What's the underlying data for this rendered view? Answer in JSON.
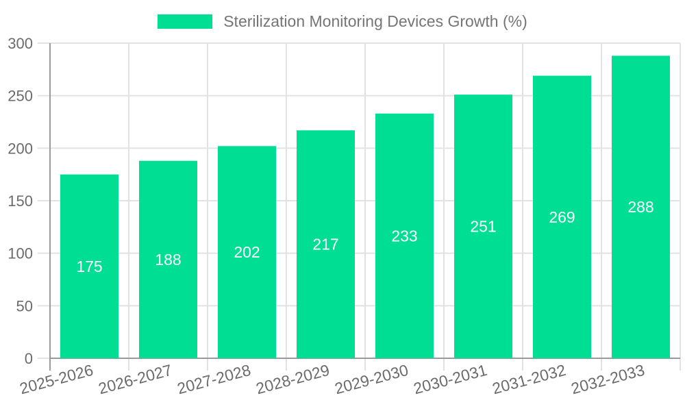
{
  "chart_data": {
    "type": "bar",
    "title": "Sterilization Monitoring Devices Growth (%)",
    "categories": [
      "2025-2026",
      "2026-2027",
      "2027-2028",
      "2028-2029",
      "2029-2030",
      "2030-2031",
      "2031-2032",
      "2032-2033"
    ],
    "values": [
      175,
      188,
      202,
      217,
      233,
      251,
      269,
      288
    ],
    "xlabel": "",
    "ylabel": "",
    "ylim": [
      0,
      300
    ],
    "yticks": [
      0,
      50,
      100,
      150,
      200,
      250,
      300
    ],
    "grid": true,
    "legend_position": "top-center",
    "x_label_rotation_deg": -15,
    "colors": {
      "bar": "#00DE94",
      "axis_line": "#9a9a9a",
      "grid_line": "#e2e2e2",
      "tick_label": "#6b6b6b",
      "legend_text": "#757575",
      "value_label": "#ffffff",
      "background": "#ffffff"
    }
  }
}
